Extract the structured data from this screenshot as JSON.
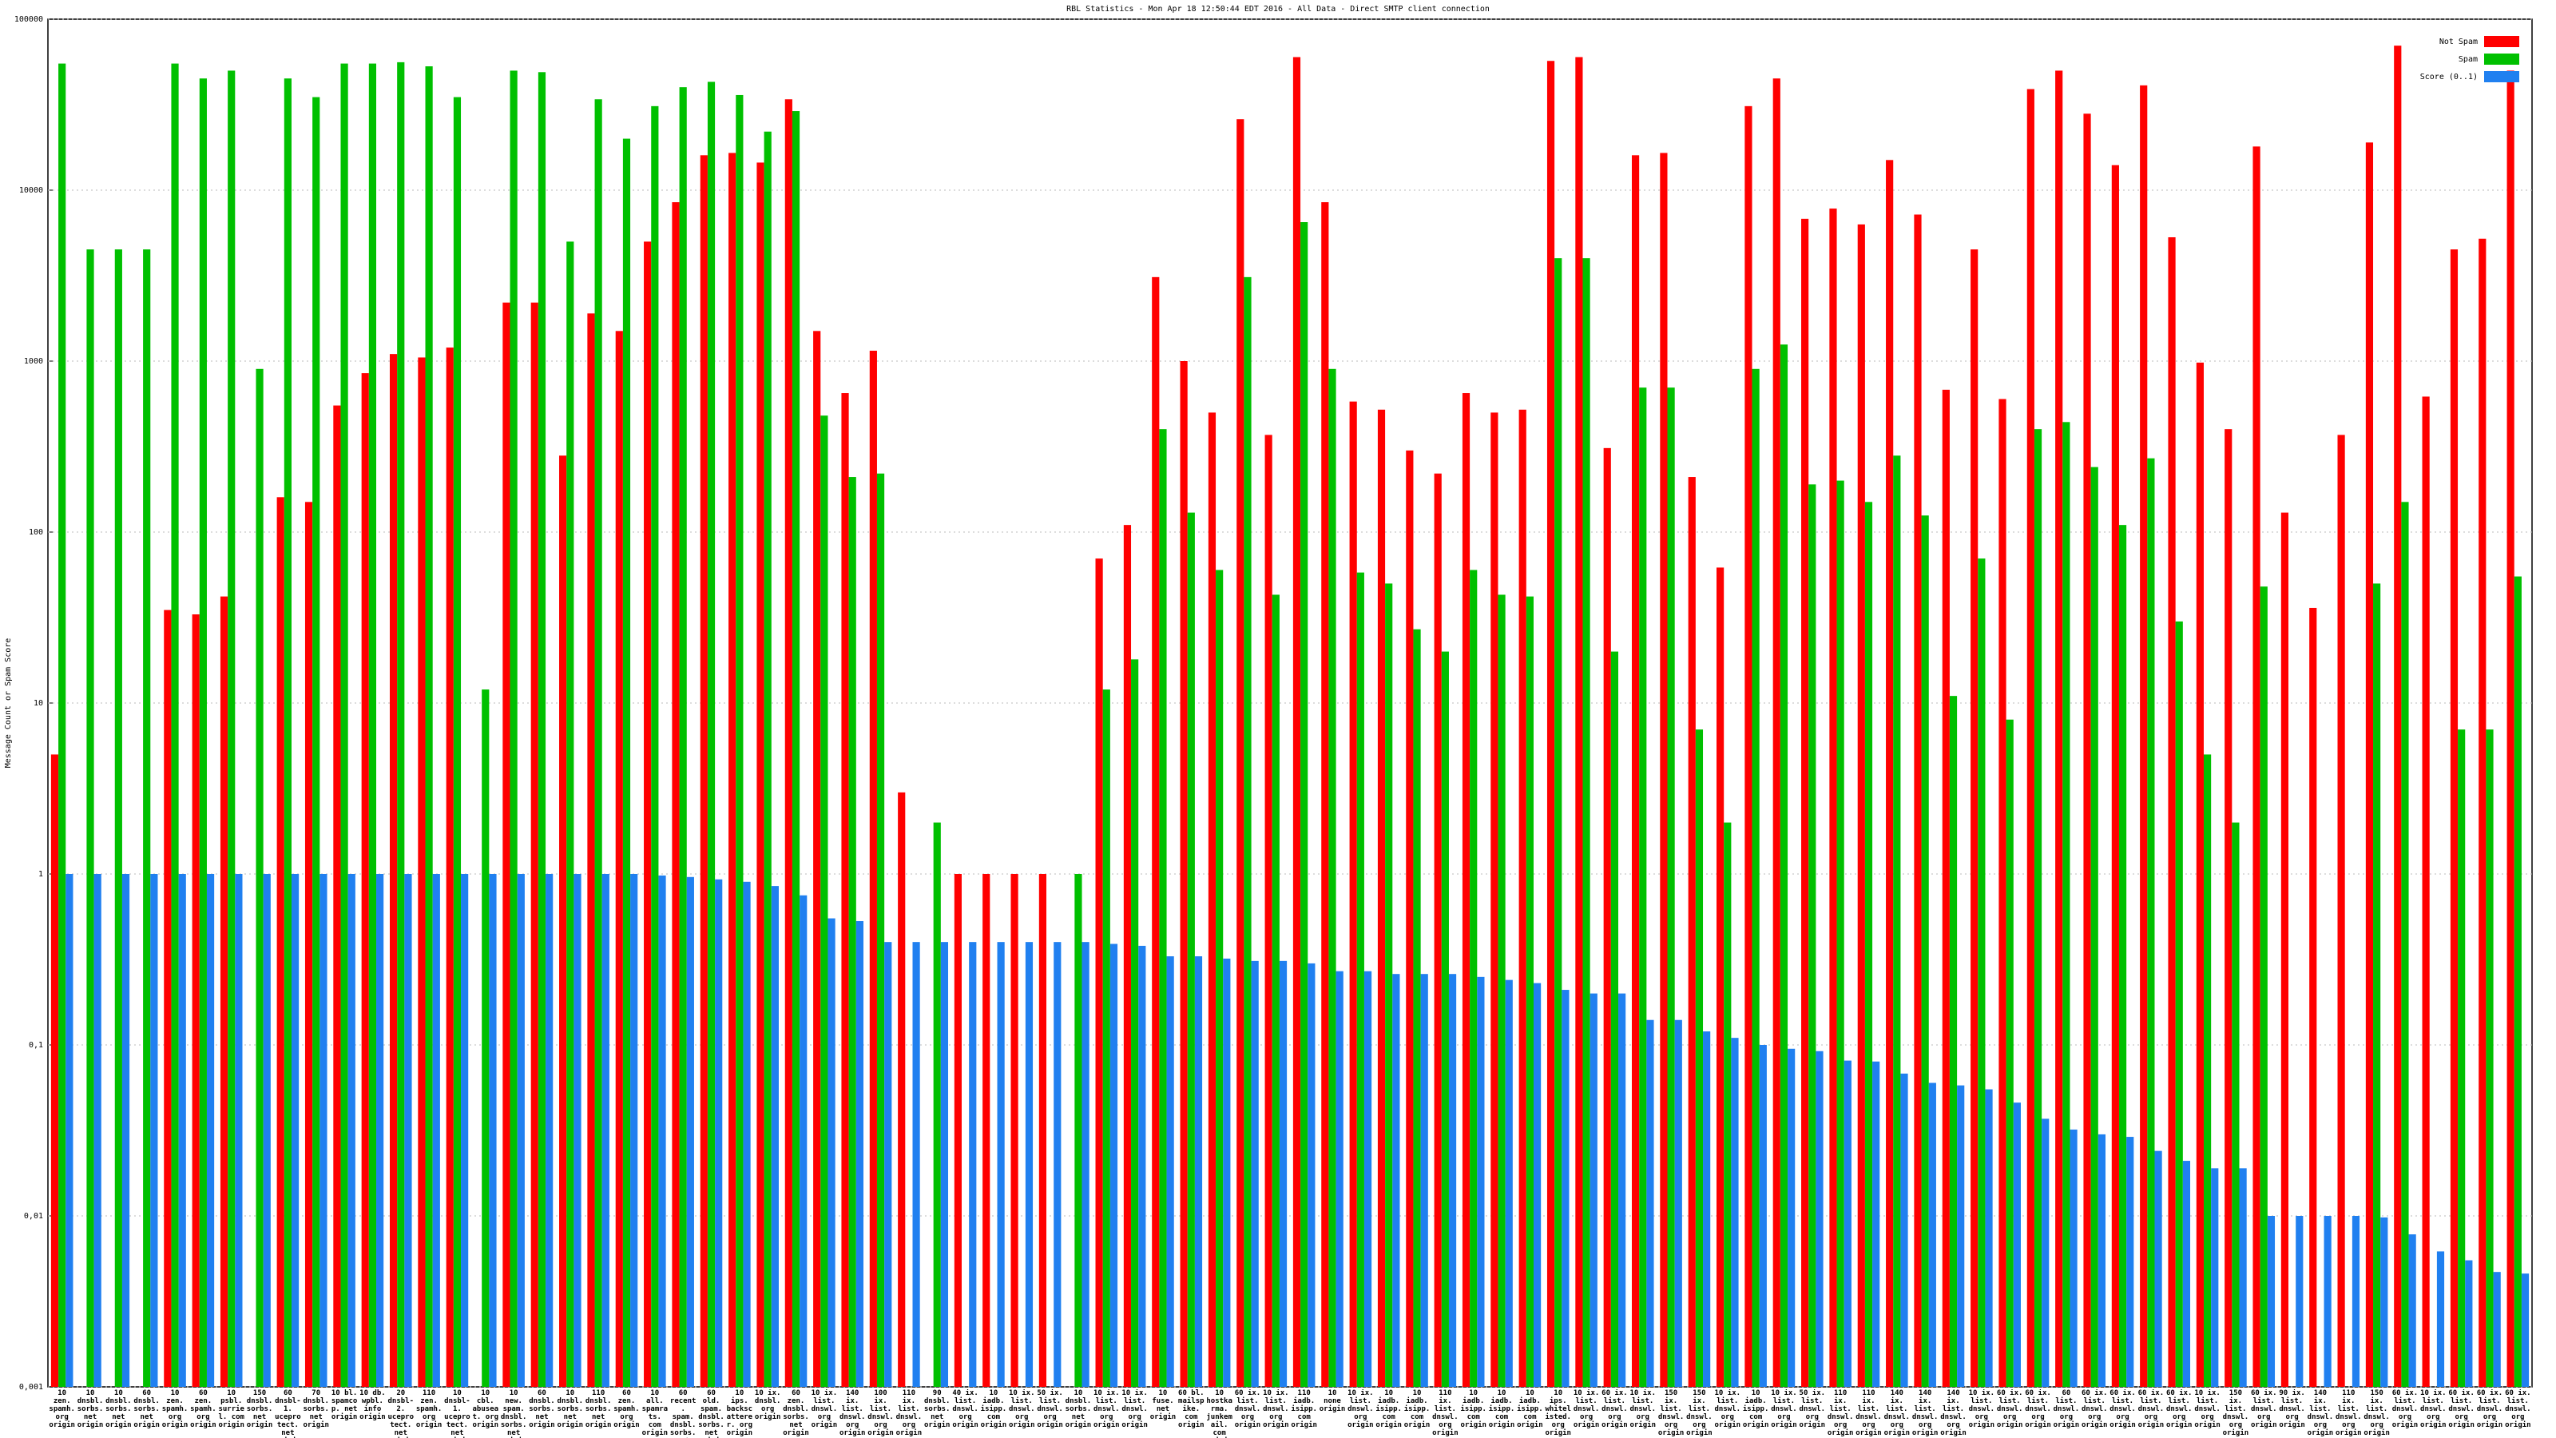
{
  "chart_data": {
    "type": "bar",
    "title": "RBL Statistics - Mon Apr 18 12:50:44 EDT 2016 - All Data - Direct SMTP client connection",
    "y_label": "Message Count or Spam Score",
    "log_scale": true,
    "grid": true,
    "legend_position": "upper right",
    "ylim": [
      0.001,
      100000
    ],
    "yticks": [
      {
        "value": 0.001,
        "label": "0,001"
      },
      {
        "value": 0.01,
        "label": "0,01"
      },
      {
        "value": 0.1,
        "label": "0,1"
      },
      1,
      10,
      100,
      1000,
      10000,
      100000
    ],
    "categories": [
      "10 zen. spamh. org origin",
      "10 dnsbl. sorbs. net origin",
      "10 dnsbl. sorbs. net origin",
      "60 dnsbl. sorbs. net origin",
      "10 zen. spamh. org origin",
      "60 zen. spamh. org origin",
      "10 psbl. surriel. com origin",
      "150 dnsbl. sorbs. net origin",
      "60 dnsbl-1. uceprotect. net origin",
      "70 dnsbl. sorbs. net origin",
      "10 bl. spamcop. net origin",
      "10 db. wpbl. info origin",
      "20 dnsbl-2. uceprotect. net origin",
      "110 zen. spamh. org origin",
      "10 dnsbl-1. uceprotect. net origin",
      "10 cbl. abuseat. org origin",
      "10 new. spam. dnsbl. sorbs. net origin",
      "60 dnsbl. sorbs. net origin",
      "10 dnsbl. sorbs. net origin",
      "110 dnsbl. sorbs. net origin",
      "60 zen. spamh. org origin",
      "10 all. spamrats. com origin",
      "60 recent. spam. dnsbl. sorbs. net origin",
      "60 old. spam. dnsbl. sorbs. net origin",
      "10 ips. backscatterer. org origin",
      "10 ix. dnsbl. org origin",
      "60 zen. dnsbl. sorbs. net origin",
      "10 ix. list. dnswl. org origin",
      "140 ix. list. dnswl. org origin",
      "100 ix. list. dnswl. org origin",
      "110 ix. list. dnswl. org origin",
      "90 dnsbl. sorbs. net origin",
      "40 ix. list. dnswl. org origin",
      "10 iadb. isipp. com origin",
      "10 ix. list. dnswl. org origin",
      "50 ix. list. dnswl. org origin",
      "10 dnsbl. sorbs. net origin",
      "10 ix. list. dnswl. org origin",
      "10 ix. list. dnswl. org origin",
      "10 fuse. net origin",
      "60 bl. mailspike. com origin",
      "10 hostkarma. junkemail. com origin",
      "60 ix. list. dnswl. org origin",
      "10 ix. list. dnswl. org origin",
      "110 iadb. isipp. com origin",
      "10 none origin",
      "10 ix. list. dnswl. org origin",
      "10 iadb. isipp. com origin",
      "10 iadb. isipp. com origin",
      "110 ix. list. dnswl. org origin",
      "10 iadb. isipp. com origin",
      "10 iadb. isipp. com origin",
      "10 iadb. isipp. com origin",
      "10 ips. whitelisted. org origin",
      "10 ix. list. dnswl. org origin",
      "60 ix. list. dnswl. org origin",
      "10 ix. list. dnswl. org origin",
      "150 ix. list. dnswl. org origin",
      "150 ix. list. dnswl. org origin",
      "10 ix. list. dnswl. org origin",
      "10 iadb. isipp. com origin",
      "10 ix. list. dnswl. org origin",
      "50 ix. list. dnswl. org origin",
      "110 ix. list. dnswl. org origin",
      "110 ix. list. dnswl. org origin",
      "140 ix. list. dnswl. org origin",
      "140 ix. list. dnswl. org origin",
      "140 ix. list. dnswl. org origin",
      "10 ix. list. dnswl. org origin",
      "60 ix. list. dnswl. org origin",
      "60 ix. list. dnswl. org origin",
      "60 list. dnswl. org origin",
      "60 ix. list. dnswl. org origin",
      "60 ix. list. dnswl. org origin",
      "60 ix. list. dnswl. org origin",
      "60 ix. list. dnswl. org origin",
      "10 ix. list. dnswl. org origin",
      "150 ix. list. dnswl. org origin",
      "60 ix. list. dnswl. org origin",
      "90 ix. list. dnswl. org origin",
      "140 ix. list. dnswl. org origin",
      "110 ix. list. dnswl. org origin",
      "150 ix. list. dnswl. org origin",
      "60 ix. list. dnswl. org origin",
      "10 ix. list. dnswl. org origin",
      "60 ix. list. dnswl. org origin",
      "60 ix. list. dnswl. org origin",
      "60 ix. list. dnswl. org origin"
    ],
    "series": [
      {
        "name": "Not Spam",
        "color": "#ff0000",
        "values": [
          5,
          null,
          null,
          null,
          35,
          33,
          42,
          null,
          160,
          150,
          550,
          850,
          1100,
          1050,
          1200,
          null,
          2200,
          2200,
          280,
          1900,
          1500,
          5000,
          8500,
          16000,
          16500,
          14500,
          34000,
          1500,
          650,
          1150,
          3,
          null,
          1,
          1,
          1,
          1,
          null,
          70,
          110,
          3100,
          1000,
          500,
          26000,
          370,
          60000,
          8500,
          580,
          520,
          300,
          220,
          650,
          500,
          520,
          57000,
          60000,
          310,
          16000,
          16500,
          210,
          62,
          31000,
          45000,
          6800,
          7800,
          6300,
          15000,
          7200,
          680,
          4500,
          600,
          39000,
          50000,
          28000,
          14000,
          41000,
          5300,
          980,
          400,
          18000,
          130,
          36,
          370,
          19000,
          70000,
          620,
          4500,
          5200,
          50000
        ]
      },
      {
        "name": "Spam",
        "color": "#00c000",
        "values": [
          55000,
          4500,
          4500,
          4500,
          55000,
          45000,
          50000,
          900,
          45000,
          35000,
          55000,
          55000,
          56000,
          53000,
          35000,
          12,
          50000,
          49000,
          5000,
          34000,
          20000,
          31000,
          40000,
          43000,
          36000,
          22000,
          29000,
          480,
          210,
          220,
          null,
          2,
          null,
          null,
          null,
          null,
          1,
          12,
          18,
          400,
          130,
          60,
          3100,
          43,
          6500,
          900,
          58,
          50,
          27,
          20,
          60,
          43,
          42,
          4000,
          4000,
          20,
          700,
          700,
          7,
          2,
          900,
          1250,
          190,
          200,
          150,
          280,
          125,
          11,
          70,
          8,
          400,
          440,
          240,
          110,
          270,
          30,
          5,
          2,
          48,
          null,
          null,
          null,
          50,
          150,
          null,
          7,
          7,
          55
        ]
      },
      {
        "name": "Score (0..1)",
        "color": "#2080f0",
        "values": [
          1,
          1,
          1,
          1,
          1,
          1,
          1,
          1,
          1,
          1,
          1,
          1,
          1,
          1,
          1,
          1,
          1,
          1,
          1,
          1,
          1,
          0.98,
          0.96,
          0.93,
          0.9,
          0.85,
          0.75,
          0.55,
          0.53,
          0.4,
          0.4,
          0.4,
          0.4,
          0.4,
          0.4,
          0.4,
          0.4,
          0.39,
          0.38,
          0.33,
          0.33,
          0.32,
          0.31,
          0.31,
          0.3,
          0.27,
          0.27,
          0.26,
          0.26,
          0.26,
          0.25,
          0.24,
          0.23,
          0.21,
          0.2,
          0.2,
          0.14,
          0.14,
          0.12,
          0.11,
          0.1,
          0.095,
          0.092,
          0.081,
          0.08,
          0.068,
          0.06,
          0.058,
          0.055,
          0.046,
          0.037,
          0.032,
          0.03,
          0.029,
          0.024,
          0.021,
          0.019,
          0.019,
          0.01,
          0.01,
          0.01,
          0.01,
          0.0098,
          0.0078,
          0.0062,
          0.0055,
          0.0047,
          0.0046
        ]
      }
    ]
  }
}
